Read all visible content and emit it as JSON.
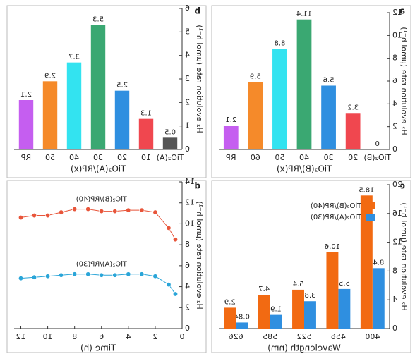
{
  "chart_data": [
    {
      "type": "bar",
      "panel": "a",
      "xlabel": "TiO₂(B)/RP(x)",
      "ylabel": "H₂ evolution rate (μmol h⁻¹)",
      "categories": [
        "TiO₂(B)",
        "20",
        "30",
        "40",
        "50",
        "60",
        "RP"
      ],
      "values": [
        0,
        3.2,
        5.6,
        11.4,
        8.8,
        5.9,
        2.1
      ],
      "colors": [
        "#555555",
        "#f0474f",
        "#2f8fe0",
        "#3aa872",
        "#33e3f0",
        "#f58a2a",
        "#c55ef0"
      ],
      "ylim": [
        0,
        12
      ],
      "yticks": [
        0,
        2,
        4,
        6,
        8,
        10,
        12
      ]
    },
    {
      "type": "bar",
      "panel": "b",
      "xlabel": "TiO₂(A)/RP(x)",
      "ylabel": "H₂ evolution rate (μmol h⁻¹)",
      "categories": [
        "TiO₂(A)",
        "10",
        "20",
        "30",
        "40",
        "50",
        "RP"
      ],
      "values": [
        0.5,
        1.3,
        2.5,
        5.3,
        3.7,
        2.9,
        2.1
      ],
      "colors": [
        "#555555",
        "#f0474f",
        "#2f8fe0",
        "#3aa872",
        "#33e3f0",
        "#f58a2a",
        "#c55ef0"
      ],
      "ylim": [
        0,
        6
      ],
      "yticks": [
        0,
        1,
        2,
        3,
        4,
        5,
        6
      ]
    },
    {
      "type": "groupbar",
      "panel": "c",
      "xlabel": "Wavelength (nm)",
      "ylabel": "H₂ evolution rate (μmol h⁻¹)",
      "categories": [
        "400",
        "456",
        "522",
        "585",
        "626"
      ],
      "series": [
        {
          "name": "TiO₂(A)/RP(30)",
          "color": "#2f8fe0",
          "values": [
            8.4,
            5.5,
            3.8,
            1.9,
            0.84
          ]
        },
        {
          "name": "TiO₂(B)/RP(40)",
          "color": "#f26a12",
          "values": [
            18.5,
            10.6,
            5.4,
            4.7,
            2.9
          ]
        }
      ],
      "legend": "upper left",
      "ylim": [
        0,
        20
      ],
      "yticks": [
        0,
        4,
        8,
        12,
        16,
        20
      ]
    },
    {
      "type": "line",
      "panel": "d",
      "xlabel": "Time (h)",
      "ylabel": "H₂ evolution rate (μmol h⁻¹)",
      "x": [
        0.5,
        1,
        2,
        3,
        4,
        5,
        6,
        7,
        8,
        9,
        10,
        11,
        12
      ],
      "series": [
        {
          "name": "TiO₂(B)/RP(40)",
          "color": "#e8553a",
          "values": [
            8.5,
            9.6,
            11.1,
            11.3,
            11.3,
            11.2,
            11.2,
            11.4,
            11.4,
            11.1,
            10.8,
            10.8,
            10.6
          ]
        },
        {
          "name": "TiO₂(A)/RP(30)",
          "color": "#2aa5d8",
          "values": [
            3.3,
            4.2,
            5.0,
            5.2,
            5.2,
            5.1,
            5.1,
            5.2,
            5.2,
            5.1,
            5.0,
            4.9,
            4.8
          ]
        }
      ],
      "xlim": [
        0,
        12.5
      ],
      "xticks": [
        0,
        2,
        4,
        6,
        8,
        10,
        12
      ],
      "ylim": [
        0,
        14
      ],
      "yticks": [
        0,
        2,
        4,
        6,
        8,
        10,
        12,
        14
      ]
    }
  ]
}
